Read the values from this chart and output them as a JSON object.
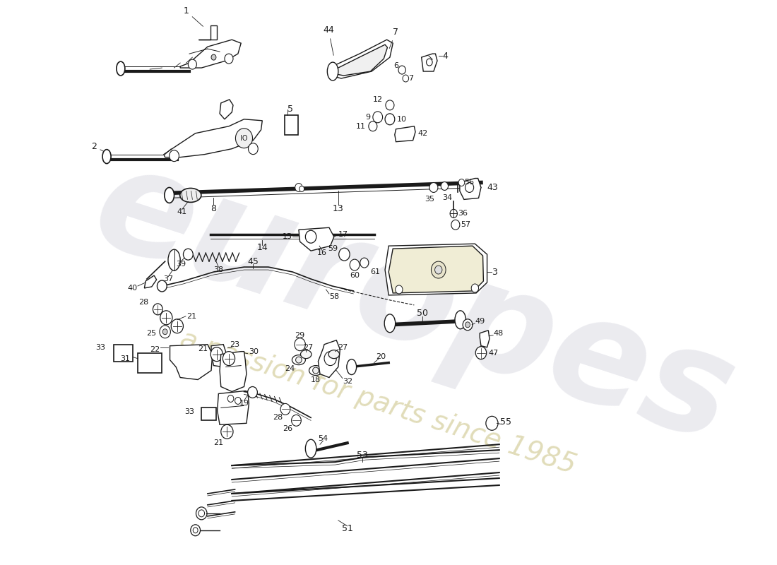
{
  "bg_color": "#ffffff",
  "lc": "#1a1a1a",
  "wm1": "europes",
  "wm2": "a passion for parts since 1985",
  "fig_w": 11.0,
  "fig_h": 8.0,
  "dpi": 100,
  "xmax": 1100,
  "ymax": 800
}
